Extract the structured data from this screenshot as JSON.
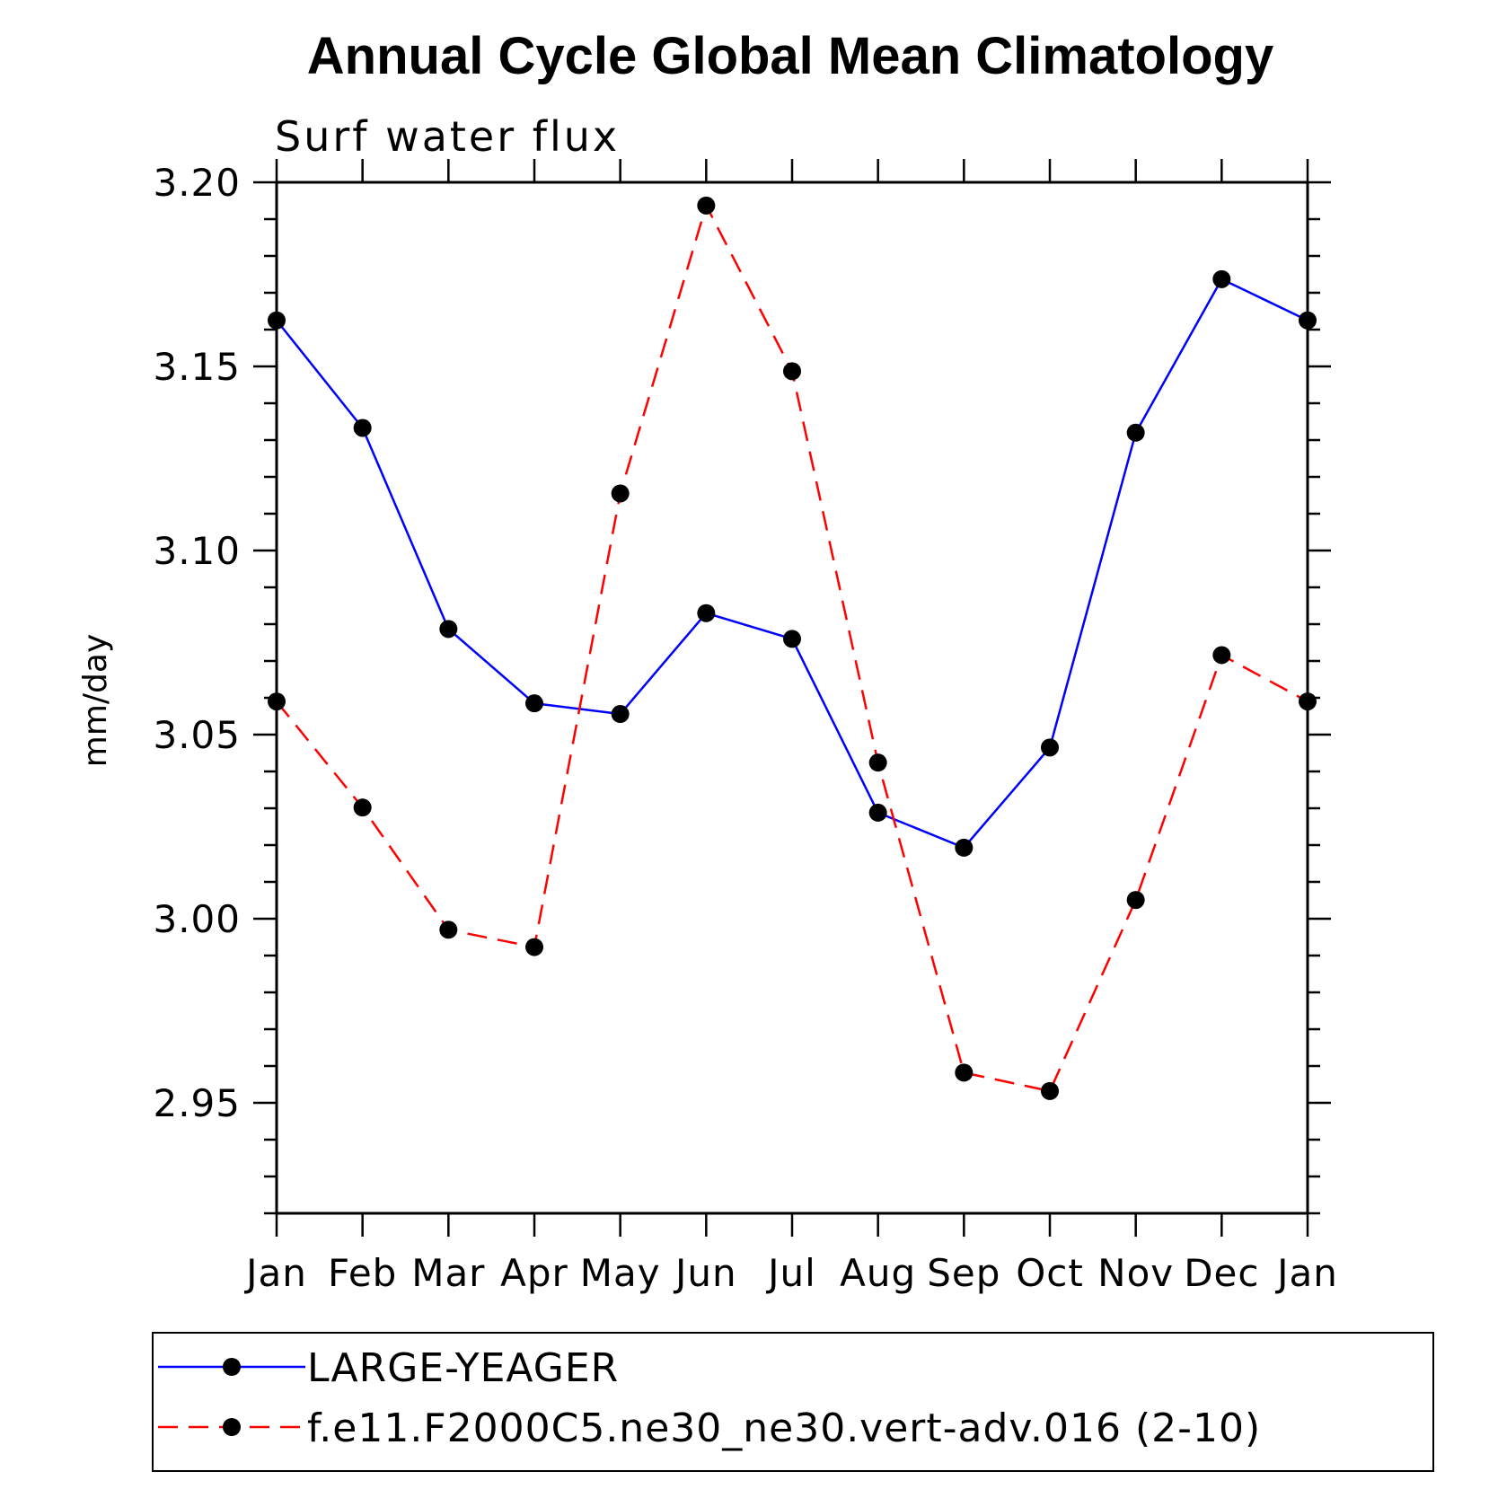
{
  "chart_data": {
    "type": "line",
    "title": "Annual Cycle Global Mean Climatology",
    "subtitle": "Surf water flux",
    "xlabel": "",
    "ylabel": "mm/day",
    "categories": [
      "Jan",
      "Feb",
      "Mar",
      "Apr",
      "May",
      "Jun",
      "Jul",
      "Aug",
      "Sep",
      "Oct",
      "Nov",
      "Dec",
      "Jan"
    ],
    "ylim": [
      2.92,
      3.2
    ],
    "yticks": [
      2.95,
      3.0,
      3.05,
      3.1,
      3.15,
      3.2
    ],
    "ytick_labels": [
      "2.95",
      "3.00",
      "3.05",
      "3.10",
      "3.15",
      "3.20"
    ],
    "y_minor_step": 0.01,
    "grid": false,
    "legend_position": "bottom",
    "series": [
      {
        "name": "LARGE-YEAGER",
        "color": "#0000ff",
        "dash": "solid",
        "marker": "filled-circle",
        "values": [
          3.1625,
          3.1333,
          3.0787,
          3.0585,
          3.0556,
          3.083,
          3.076,
          3.0288,
          3.0193,
          3.0465,
          3.132,
          3.1737,
          3.1625
        ]
      },
      {
        "name": "f.e11.F2000C5.ne30_ne30.vert-adv.016 (2-10)",
        "color": "#ff0000",
        "dash": "dashed",
        "marker": "filled-circle",
        "values": [
          3.059,
          3.0302,
          2.997,
          2.9923,
          3.1155,
          3.1937,
          3.1487,
          3.0424,
          2.9582,
          2.9532,
          3.0051,
          3.0716,
          3.059
        ]
      }
    ]
  }
}
